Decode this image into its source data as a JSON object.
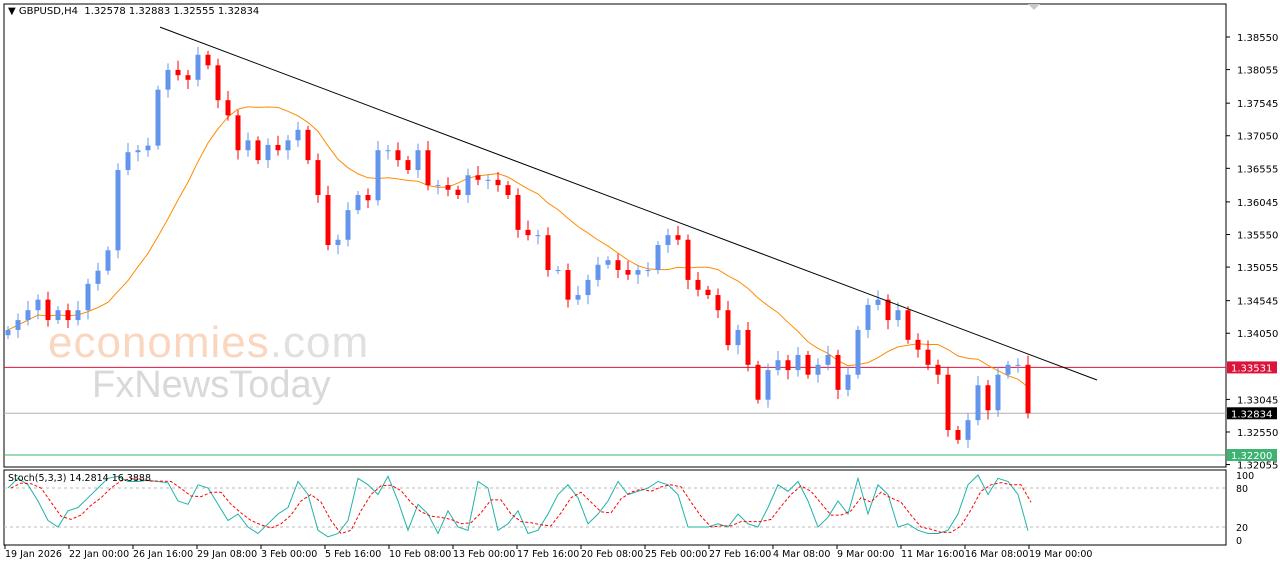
{
  "header": {
    "symbol": "GBPUSD,H4",
    "ohlc": "1.32578 1.32883 1.32555 1.32834"
  },
  "watermark": {
    "brand1": "economies",
    "brand1_suffix": ".com",
    "brand2": "FxNewsToday"
  },
  "indicator": {
    "label": "Stoch(5,3,3) 14.2814 16.3888"
  },
  "colors": {
    "bull": "#6495ED",
    "bear": "#FF0000",
    "ma": "#FF8C00",
    "trend": "#000000",
    "stoch_main": "#20B2AA",
    "stoch_signal": "#FF0000",
    "resistance": "#DC143C",
    "current": "#000000",
    "support": "#3CB371"
  },
  "chart_data": {
    "type": "candlestick",
    "title": "GBPUSD,H4",
    "ylim": [
      1.32055,
      1.3885
    ],
    "y_ticks": [
      "1.38550",
      "1.38055",
      "1.37545",
      "1.37050",
      "1.36555",
      "1.36045",
      "1.35550",
      "1.35055",
      "1.34545",
      "1.34050",
      "1.33045",
      "1.32550",
      "1.32055"
    ],
    "x_ticks": [
      "19 Jan 2026",
      "22 Jan 00:00",
      "26 Jan 16:00",
      "29 Jan 08:00",
      "3 Feb 00:00",
      "5 Feb 16:00",
      "10 Feb 08:00",
      "13 Feb 00:00",
      "17 Feb 16:00",
      "20 Feb 08:00",
      "25 Feb 00:00",
      "27 Feb 16:00",
      "4 Mar 08:00",
      "9 Mar 00:00",
      "11 Mar 16:00",
      "16 Mar 08:00",
      "19 Mar 00:00"
    ],
    "close": [
      1.341,
      1.3425,
      1.344,
      1.3456,
      1.3425,
      1.344,
      1.3425,
      1.344,
      1.348,
      1.35,
      1.3531,
      1.3653,
      1.368,
      1.3683,
      1.369,
      1.3775,
      1.3805,
      1.3797,
      1.379,
      1.3828,
      1.3812,
      1.3759,
      1.3736,
      1.3683,
      1.3698,
      1.3668,
      1.3691,
      1.3683,
      1.3698,
      1.3714,
      1.3668,
      1.3615,
      1.3539,
      1.3547,
      1.3592,
      1.3615,
      1.3607,
      1.3683,
      1.3683,
      1.3668,
      1.3653,
      1.3683,
      1.363,
      1.363,
      1.3623,
      1.3615,
      1.3645,
      1.3638,
      1.3638,
      1.363,
      1.3615,
      1.3562,
      1.3554,
      1.3554,
      1.3501,
      1.3501,
      1.3456,
      1.3463,
      1.3486,
      1.3509,
      1.3516,
      1.3501,
      1.3494,
      1.3501,
      1.3501,
      1.3539,
      1.3554,
      1.3547,
      1.3486,
      1.3471,
      1.3463,
      1.344,
      1.3387,
      1.341,
      1.3357,
      1.3304,
      1.3349,
      1.3364,
      1.3349,
      1.3372,
      1.3342,
      1.3357,
      1.3372,
      1.3319,
      1.3342,
      1.341,
      1.3448,
      1.3456,
      1.3425,
      1.344,
      1.3395,
      1.338,
      1.3357,
      1.3342,
      1.3258,
      1.3243,
      1.3273,
      1.3326,
      1.3288,
      1.3342,
      1.3357,
      1.3357,
      1.32834
    ],
    "trendline": {
      "start_price": 1.387,
      "end_price": 1.3334
    },
    "horizontal_lines": [
      {
        "name": "resistance",
        "price": "1.33531"
      },
      {
        "name": "current",
        "price": "1.32834"
      },
      {
        "name": "support",
        "price": "1.32200"
      }
    ],
    "stochastic": {
      "levels": [
        "100",
        "80",
        "20",
        "0"
      ],
      "main": [
        80,
        95,
        85,
        60,
        30,
        20,
        45,
        50,
        65,
        80,
        95,
        98,
        90,
        90,
        92,
        90,
        88,
        60,
        55,
        85,
        80,
        55,
        30,
        40,
        20,
        10,
        25,
        40,
        50,
        90,
        70,
        15,
        5,
        10,
        30,
        95,
        85,
        70,
        98,
        60,
        15,
        55,
        40,
        10,
        45,
        20,
        15,
        90,
        80,
        15,
        25,
        45,
        10,
        15,
        40,
        70,
        85,
        65,
        25,
        40,
        60,
        90,
        70,
        75,
        80,
        90,
        85,
        70,
        20,
        20,
        20,
        25,
        20,
        40,
        25,
        20,
        50,
        85,
        75,
        90,
        60,
        20,
        35,
        60,
        40,
        95,
        40,
        85,
        70,
        20,
        25,
        15,
        10,
        10,
        15,
        40,
        85,
        100,
        70,
        95,
        90,
        70,
        14.28
      ]
    }
  }
}
